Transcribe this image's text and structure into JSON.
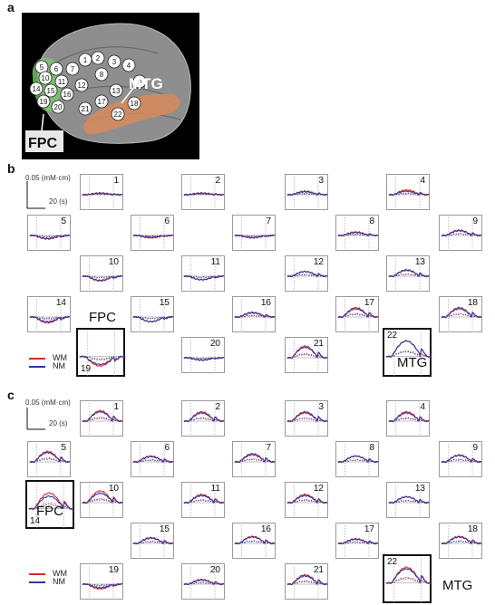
{
  "panel_labels": {
    "a": "a",
    "b": "b",
    "c": "c"
  },
  "brain": {
    "mtg_label": "MTG",
    "fpc_label": "FPC",
    "channels": [
      {
        "n": "1",
        "fpc": false,
        "mtg": false
      },
      {
        "n": "2",
        "fpc": false,
        "mtg": false
      },
      {
        "n": "3",
        "fpc": false,
        "mtg": false
      },
      {
        "n": "4",
        "fpc": false,
        "mtg": false
      },
      {
        "n": "5",
        "fpc": true,
        "mtg": false
      },
      {
        "n": "6",
        "fpc": false,
        "mtg": false
      },
      {
        "n": "7",
        "fpc": false,
        "mtg": false
      },
      {
        "n": "8",
        "fpc": false,
        "mtg": false
      },
      {
        "n": "9",
        "fpc": false,
        "mtg": false
      },
      {
        "n": "10",
        "fpc": true,
        "mtg": false
      },
      {
        "n": "11",
        "fpc": false,
        "mtg": false
      },
      {
        "n": "12",
        "fpc": false,
        "mtg": false
      },
      {
        "n": "13",
        "fpc": false,
        "mtg": false
      },
      {
        "n": "14",
        "fpc": true,
        "mtg": false
      },
      {
        "n": "15",
        "fpc": true,
        "mtg": false
      },
      {
        "n": "16",
        "fpc": false,
        "mtg": false
      },
      {
        "n": "17",
        "fpc": false,
        "mtg": true
      },
      {
        "n": "18",
        "fpc": false,
        "mtg": true
      },
      {
        "n": "19",
        "fpc": true,
        "mtg": false
      },
      {
        "n": "20",
        "fpc": true,
        "mtg": false
      },
      {
        "n": "21",
        "fpc": false,
        "mtg": true
      },
      {
        "n": "22",
        "fpc": false,
        "mtg": true
      }
    ]
  },
  "scale_bar": {
    "amplitude": "0.05 (mM·cm)",
    "time": "20 (s)"
  },
  "legend": {
    "wm": "WM",
    "nm": "NM",
    "wm_color": "#d62828",
    "nm_color": "#2b3a9e"
  },
  "region_labels": {
    "fpc": "FPC",
    "mtg": "MTG"
  },
  "panel_b": {
    "channels": [
      {
        "n": "1",
        "wm": 0.15,
        "nm": 0.12,
        "highlight": ""
      },
      {
        "n": "2",
        "wm": 0.15,
        "nm": 0.12,
        "highlight": ""
      },
      {
        "n": "3",
        "wm": 0.3,
        "nm": 0.25,
        "highlight": ""
      },
      {
        "n": "4",
        "wm": 0.4,
        "nm": 0.3,
        "highlight": ""
      },
      {
        "n": "5",
        "wm": -0.3,
        "nm": -0.25,
        "highlight": ""
      },
      {
        "n": "6",
        "wm": -0.2,
        "nm": -0.15,
        "highlight": ""
      },
      {
        "n": "7",
        "wm": -0.2,
        "nm": -0.18,
        "highlight": ""
      },
      {
        "n": "8",
        "wm": 0.3,
        "nm": 0.25,
        "highlight": ""
      },
      {
        "n": "9",
        "wm": 0.4,
        "nm": 0.45,
        "highlight": ""
      },
      {
        "n": "10",
        "wm": -0.4,
        "nm": -0.35,
        "highlight": ""
      },
      {
        "n": "11",
        "wm": -0.3,
        "nm": -0.3,
        "highlight": ""
      },
      {
        "n": "12",
        "wm": 0.4,
        "nm": 0.4,
        "highlight": ""
      },
      {
        "n": "13",
        "wm": 0.5,
        "nm": 0.55,
        "highlight": ""
      },
      {
        "n": "14",
        "wm": -0.5,
        "nm": -0.4,
        "highlight": ""
      },
      {
        "n": "15",
        "wm": -0.4,
        "nm": -0.4,
        "highlight": ""
      },
      {
        "n": "16",
        "wm": 0.4,
        "nm": 0.35,
        "highlight": ""
      },
      {
        "n": "17",
        "wm": 0.8,
        "nm": 0.7,
        "highlight": ""
      },
      {
        "n": "18",
        "wm": 0.7,
        "nm": 0.8,
        "highlight": ""
      },
      {
        "n": "19",
        "wm": -0.6,
        "nm": -0.5,
        "highlight": "fpc"
      },
      {
        "n": "20",
        "wm": -0.2,
        "nm": -0.2,
        "highlight": ""
      },
      {
        "n": "21",
        "wm": 1.0,
        "nm": 0.9,
        "highlight": ""
      },
      {
        "n": "22",
        "wm": 1.0,
        "nm": 1.0,
        "highlight": "mtg"
      }
    ]
  },
  "panel_c": {
    "channels": [
      {
        "n": "1",
        "wm": 0.9,
        "nm": 0.8,
        "highlight": ""
      },
      {
        "n": "2",
        "wm": 0.8,
        "nm": 0.7,
        "highlight": ""
      },
      {
        "n": "3",
        "wm": 0.7,
        "nm": 0.8,
        "highlight": ""
      },
      {
        "n": "4",
        "wm": 0.8,
        "nm": 0.7,
        "highlight": ""
      },
      {
        "n": "5",
        "wm": 0.9,
        "nm": 0.8,
        "highlight": ""
      },
      {
        "n": "6",
        "wm": 0.5,
        "nm": 0.45,
        "highlight": ""
      },
      {
        "n": "7",
        "wm": 0.6,
        "nm": 0.7,
        "highlight": ""
      },
      {
        "n": "8",
        "wm": 0.5,
        "nm": 0.5,
        "highlight": ""
      },
      {
        "n": "9",
        "wm": 0.6,
        "nm": 0.55,
        "highlight": ""
      },
      {
        "n": "10",
        "wm": 1.0,
        "nm": 0.8,
        "highlight": ""
      },
      {
        "n": "11",
        "wm": 0.7,
        "nm": 0.6,
        "highlight": ""
      },
      {
        "n": "12",
        "wm": 0.7,
        "nm": 0.6,
        "highlight": ""
      },
      {
        "n": "13",
        "wm": 0.5,
        "nm": 0.5,
        "highlight": ""
      },
      {
        "n": "14",
        "wm": 1.0,
        "nm": 0.8,
        "highlight": "fpc"
      },
      {
        "n": "15",
        "wm": 0.5,
        "nm": 0.45,
        "highlight": ""
      },
      {
        "n": "16",
        "wm": 0.6,
        "nm": 0.55,
        "highlight": ""
      },
      {
        "n": "17",
        "wm": 0.4,
        "nm": 0.35,
        "highlight": ""
      },
      {
        "n": "18",
        "wm": 0.6,
        "nm": 0.55,
        "highlight": ""
      },
      {
        "n": "19",
        "wm": -0.4,
        "nm": -0.3,
        "highlight": ""
      },
      {
        "n": "20",
        "wm": 0.4,
        "nm": 0.35,
        "highlight": ""
      },
      {
        "n": "21",
        "wm": 0.8,
        "nm": 0.7,
        "highlight": ""
      },
      {
        "n": "22",
        "wm": 1.0,
        "nm": 0.9,
        "highlight": "mtg"
      }
    ]
  }
}
